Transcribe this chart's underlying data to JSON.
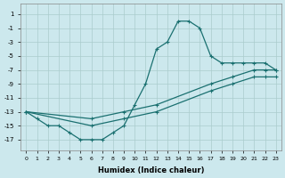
{
  "xlabel": "Humidex (Indice chaleur)",
  "bg_color": "#cce8ed",
  "grid_color": "#aacccc",
  "line_color": "#1a7070",
  "xlim": [
    -0.5,
    23.5
  ],
  "ylim": [
    -18.5,
    2.5
  ],
  "xticks": [
    0,
    1,
    2,
    3,
    4,
    5,
    6,
    7,
    8,
    9,
    10,
    11,
    12,
    13,
    14,
    15,
    16,
    17,
    18,
    19,
    20,
    21,
    22,
    23
  ],
  "yticks": [
    1,
    -1,
    -3,
    -5,
    -7,
    -9,
    -11,
    -13,
    -15,
    -17
  ],
  "curve_main_x": [
    0,
    1,
    2,
    3,
    4,
    5,
    6,
    7,
    8,
    9,
    10,
    11,
    12,
    13,
    14,
    15,
    16,
    17,
    18,
    19,
    20,
    21,
    22,
    23
  ],
  "curve_main_y": [
    -13,
    -14,
    -15,
    -15,
    -16,
    -17,
    -17,
    -17,
    -16,
    -15,
    -12,
    -9,
    -4,
    -3,
    0,
    0,
    -1,
    -5,
    -6,
    -6,
    -6,
    -6,
    -6,
    -7
  ],
  "curve_diag1_x": [
    0,
    6,
    9,
    12,
    17,
    19,
    21,
    22,
    23
  ],
  "curve_diag1_y": [
    -13,
    -14,
    -13,
    -12,
    -9,
    -8,
    -7,
    -7,
    -7
  ],
  "curve_diag2_x": [
    0,
    6,
    9,
    12,
    17,
    19,
    21,
    22,
    23
  ],
  "curve_diag2_y": [
    -13,
    -15,
    -14,
    -13,
    -10,
    -9,
    -8,
    -8,
    -8
  ],
  "marker": "+",
  "markersize": 3.5,
  "linewidth": 0.9
}
